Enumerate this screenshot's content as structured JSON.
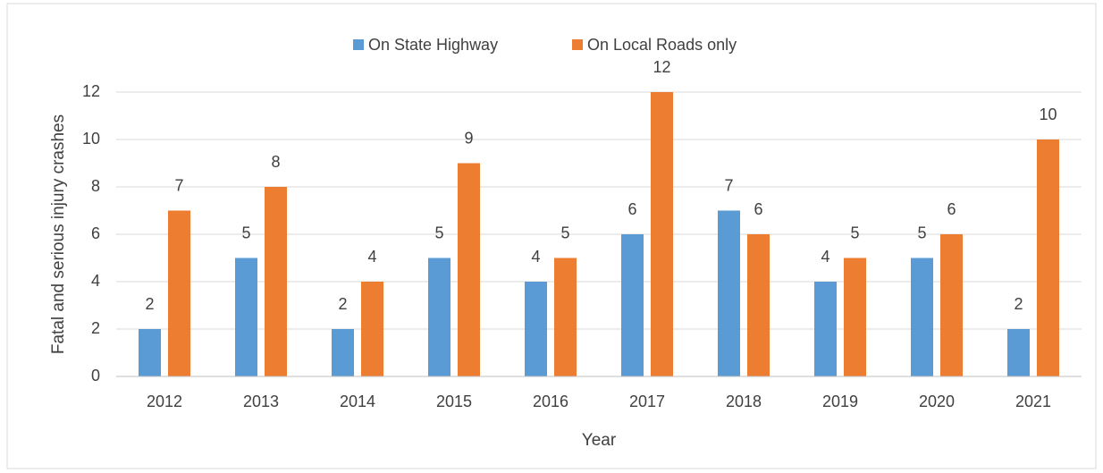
{
  "chart_data": {
    "type": "bar",
    "x_label": "Year",
    "y_label": "Fatal and serious injury crashes",
    "categories": [
      "2012",
      "2013",
      "2014",
      "2015",
      "2016",
      "2017",
      "2018",
      "2019",
      "2020",
      "2021"
    ],
    "series": [
      {
        "name": "On State Highway",
        "color": "#5b9bd5",
        "values": [
          2,
          5,
          2,
          5,
          4,
          6,
          7,
          4,
          5,
          2
        ]
      },
      {
        "name": "On Local Roads only",
        "color": "#ed7d31",
        "values": [
          7,
          8,
          4,
          9,
          5,
          12,
          6,
          5,
          6,
          10
        ]
      }
    ],
    "ylim": [
      0,
      12
    ],
    "yticks": [
      0,
      2,
      4,
      6,
      8,
      10,
      12
    ],
    "grid": true,
    "legend": "top"
  }
}
